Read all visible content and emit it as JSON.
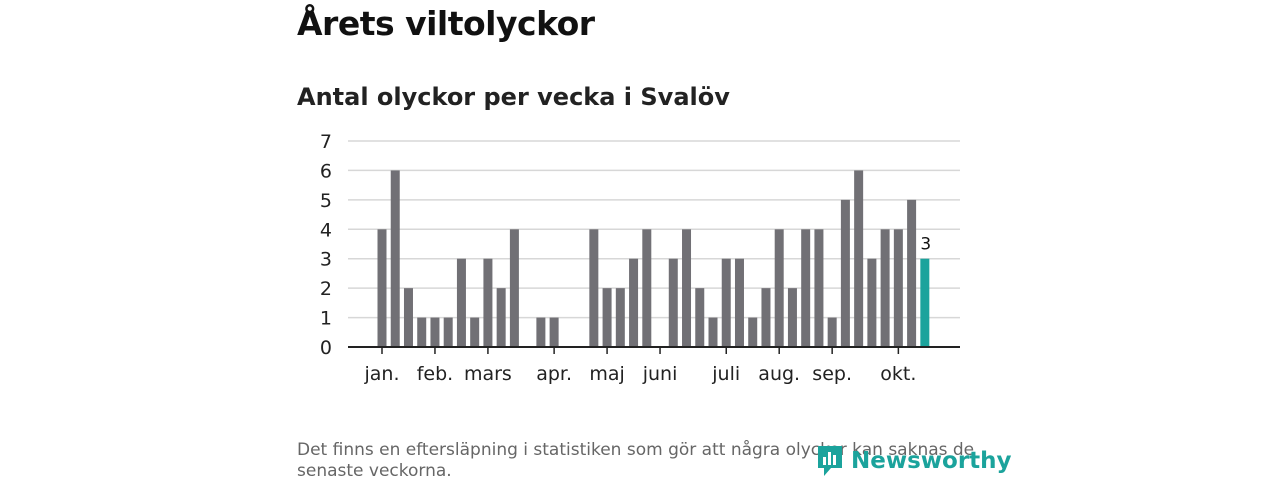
{
  "header": {
    "title": "Årets viltolyckor",
    "subtitle": "Antal olyckor per vecka i Svalöv"
  },
  "chart_data": {
    "type": "bar",
    "title": "Antal olyckor per vecka i Svalöv",
    "xlabel": "",
    "ylabel": "",
    "ylim": [
      0,
      7
    ],
    "yticks": [
      0,
      1,
      2,
      3,
      4,
      5,
      6,
      7
    ],
    "grid": true,
    "values": [
      4,
      6,
      2,
      1,
      1,
      1,
      3,
      1,
      3,
      2,
      4,
      0,
      1,
      1,
      0,
      0,
      4,
      2,
      2,
      3,
      4,
      0,
      3,
      4,
      2,
      1,
      3,
      3,
      1,
      2,
      4,
      2,
      4,
      4,
      1,
      5,
      6,
      3,
      4,
      4,
      5,
      3
    ],
    "highlight_last": true,
    "last_label": "3",
    "month_labels": [
      {
        "label": "jan.",
        "week": 1
      },
      {
        "label": "feb.",
        "week": 5
      },
      {
        "label": "mars",
        "week": 9
      },
      {
        "label": "apr.",
        "week": 14
      },
      {
        "label": "maj",
        "week": 18
      },
      {
        "label": "juni",
        "week": 22
      },
      {
        "label": "juli",
        "week": 27
      },
      {
        "label": "aug.",
        "week": 31
      },
      {
        "label": "sep.",
        "week": 35
      },
      {
        "label": "okt.",
        "week": 40
      }
    ],
    "colors": {
      "bar": "#717075",
      "highlight": "#1ba39c",
      "grid": "#d7d7d7",
      "axis": "#222222"
    }
  },
  "footer": {
    "note": "Det finns en eftersläpning i statistiken som gör att några olyckor kan saknas de senaste veckorna.",
    "brand": "Newsworthy"
  }
}
